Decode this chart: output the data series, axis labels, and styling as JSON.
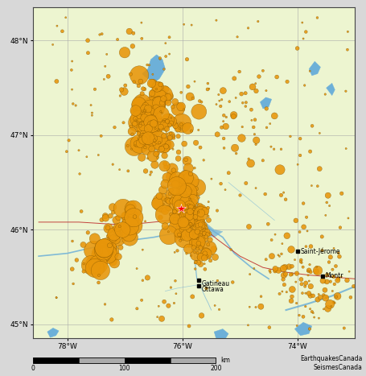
{
  "lon_min": -78.6,
  "lon_max": -73.0,
  "lat_min": 44.85,
  "lat_max": 48.35,
  "bg_color": "#d8d8d8",
  "map_bg": "#edf5d0",
  "water_color": "#6db0d8",
  "grid_color": "#aaaaaa",
  "grid_lw": 0.5,
  "border_color": "#444444",
  "figsize": [
    4.55,
    4.67
  ],
  "dpi": 100,
  "xlabel_ticks": [
    -78,
    -76,
    -74
  ],
  "xlabel_labels": [
    "78°W",
    "76°W",
    "74°W"
  ],
  "ylabel_ticks": [
    45,
    46,
    47,
    48
  ],
  "ylabel_labels": [
    "45°N",
    "46°N",
    "47°N",
    "48°N"
  ],
  "star_lon": -76.02,
  "star_lat": 46.22,
  "quake_dot_color": "#e8960a",
  "quake_dot_edge": "#7a5000",
  "road_color": "#bb2222",
  "river_color": "#6db0d8",
  "scale_text": "EarthquakesCanada\nSeismesCanada"
}
